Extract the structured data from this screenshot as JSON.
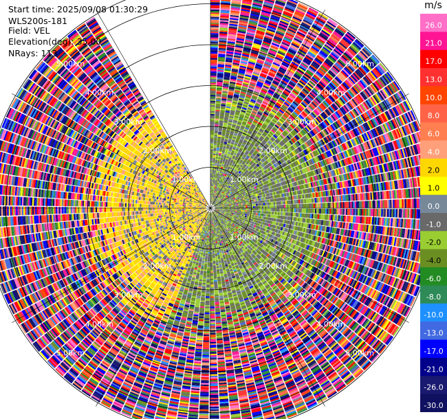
{
  "header": {
    "start_time_label": "Start time:",
    "start_time": "2025/09/08 01:30:29",
    "instrument": "WLS200s-181",
    "field_label": "Field:",
    "field": "VEL",
    "elevation_label": "Elevation(deg):",
    "elevation": "35.00",
    "nrays_label": "NRays:",
    "nrays": "113"
  },
  "chart_data": {
    "type": "heatmap",
    "projection": "polar-ppi",
    "field": "VEL",
    "elevation_deg": 35.0,
    "n_rays": 113,
    "range_km": [
      0,
      5.5
    ],
    "range_rings_km": [
      1.0,
      2.0,
      3.0,
      4.0,
      5.0
    ],
    "ring_labels": [
      "1.00km",
      "2.00km",
      "3.00km",
      "4.00km",
      "5.00km"
    ],
    "gap_azimuth_deg": [
      329,
      360
    ],
    "colorbar": {
      "unit": "m/s",
      "tick_labels": [
        "26.0",
        "21.0",
        "17.0",
        "13.0",
        "10.0",
        "8.0",
        "6.0",
        "4.0",
        "2.0",
        "1.0",
        "0.0",
        "-1.0",
        "-2.0",
        "-4.0",
        "-6.0",
        "-8.0",
        "-10.0",
        "-13.0",
        "-17.0",
        "-21.0",
        "-26.0",
        "-30.0"
      ],
      "boundaries": [
        30,
        26,
        21,
        17,
        13,
        10,
        8,
        6,
        4,
        2,
        1,
        0,
        -1,
        -2,
        -4,
        -6,
        -8,
        -10,
        -13,
        -17,
        -21,
        -26,
        -30
      ],
      "colors": [
        "#ff6ec7",
        "#ff1493",
        "#ff0000",
        "#ff3030",
        "#ff4500",
        "#ff6347",
        "#ff7f50",
        "#ffa07a",
        "#ffd700",
        "#ffff00",
        "#778899",
        "#696969",
        "#9acd32",
        "#6b8e23",
        "#228b22",
        "#2e8b57",
        "#1e90ff",
        "#4169e1",
        "#0000ff",
        "#00008b",
        "#191970",
        "#101060"
      ]
    }
  }
}
